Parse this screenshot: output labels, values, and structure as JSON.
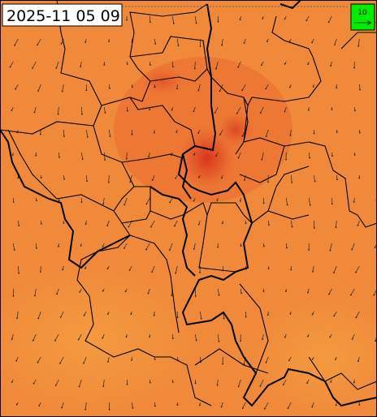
{
  "timestamp": "2025-11 05 09",
  "legend": {
    "label": "10"
  }
}
